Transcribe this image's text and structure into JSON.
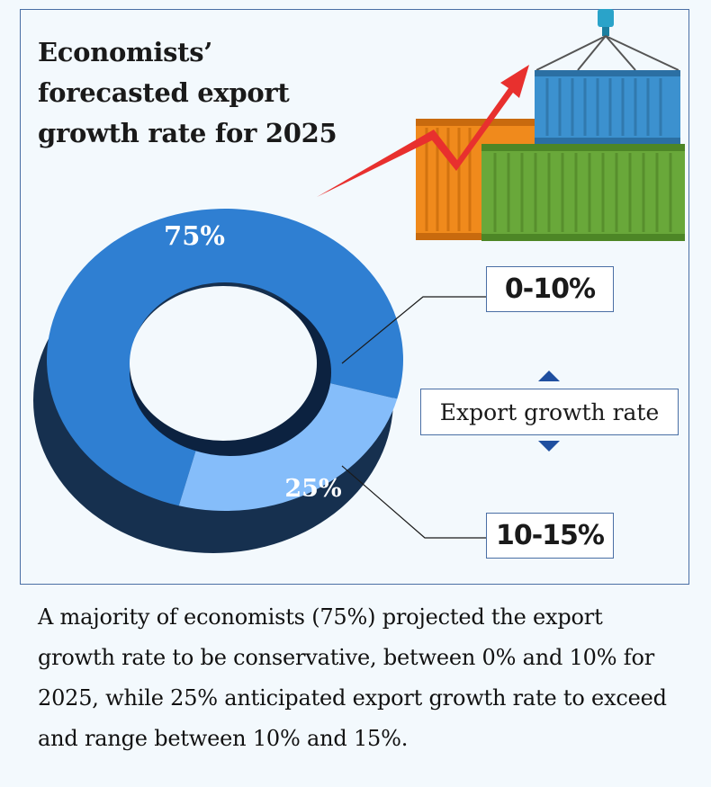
{
  "title": "Economists’ forecasted export growth rate for 2025",
  "caption": "A majority of economists (75%) projected the export growth rate to be conservative, between 0% and 10% for 2025, while 25% anticipated export growth rate to exceed and range between 10% and 15%.",
  "legend_label": "Export growth rate",
  "colors": {
    "slice_dark_blue": "#2f7fd2",
    "slice_light_blue": "#85bdfa",
    "arrow": "#e8302e",
    "container_blue": "#3c91cf",
    "container_green": "#69a83a",
    "container_orange": "#f08a1c"
  },
  "chart_data": {
    "type": "pie",
    "variant": "donut",
    "title": "Economists’ forecasted export growth rate for 2025",
    "categories": [
      "0-10%",
      "10-15%"
    ],
    "values": [
      75,
      25
    ],
    "data_labels": [
      "75%",
      "25%"
    ],
    "legend_title": "Export growth rate"
  }
}
